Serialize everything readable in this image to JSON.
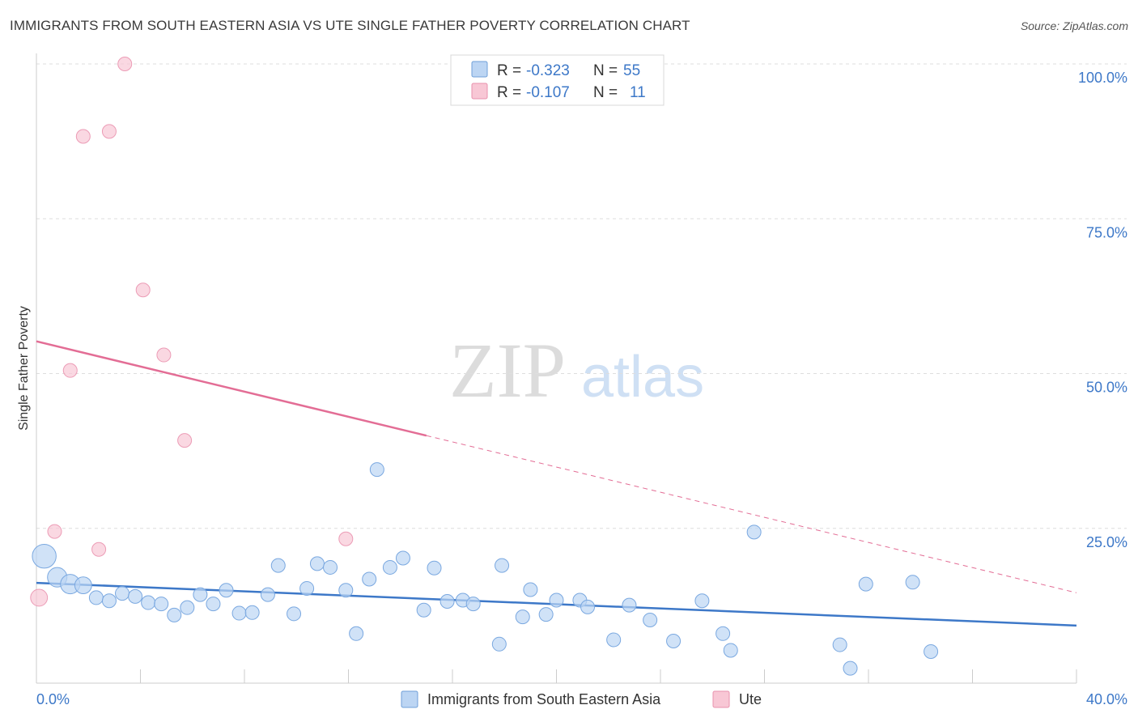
{
  "title": "IMMIGRANTS FROM SOUTH EASTERN ASIA VS UTE SINGLE FATHER POVERTY CORRELATION CHART",
  "source": "Source: ZipAtlas.com",
  "watermark": {
    "zip": "ZIP",
    "atlas": "atlas"
  },
  "chart_data": {
    "type": "scatter",
    "title": "IMMIGRANTS FROM SOUTH EASTERN ASIA VS UTE SINGLE FATHER POVERTY CORRELATION CHART",
    "xlabel": "",
    "ylabel": "Single Father Poverty",
    "xlim": [
      0,
      40
    ],
    "ylim": [
      0,
      100
    ],
    "x_tick_labels": [
      "0.0%",
      "40.0%"
    ],
    "y_ticks": [
      25,
      50,
      75,
      100
    ],
    "y_tick_labels": [
      "25.0%",
      "50.0%",
      "75.0%",
      "100.0%"
    ],
    "grid": true,
    "legend_position": "top-center",
    "colors": {
      "blue": "#3d78c8",
      "blue_fill": "#bcd5f3",
      "pink": "#e36d95",
      "pink_fill": "#f8c7d5"
    },
    "stats": [
      {
        "r_label": "R =",
        "r": "-0.323",
        "n_label": "N =",
        "n": "55"
      },
      {
        "r_label": "R =",
        "r": "-0.107",
        "n_label": "N =",
        "n": "11"
      }
    ],
    "series": [
      {
        "name": "Immigrants from South Eastern Asia",
        "color": "#3d78c8",
        "trend": {
          "x": [
            0,
            40
          ],
          "y": [
            16.2,
            9.3
          ],
          "dashed_from": null
        },
        "points": [
          {
            "x": 0.3,
            "y": 20.5,
            "s": 3
          },
          {
            "x": 0.8,
            "y": 17.1,
            "s": 2
          },
          {
            "x": 1.3,
            "y": 16.0,
            "s": 2
          },
          {
            "x": 1.8,
            "y": 15.8,
            "s": 1.5
          },
          {
            "x": 2.3,
            "y": 13.8,
            "s": 1
          },
          {
            "x": 2.8,
            "y": 13.3,
            "s": 1
          },
          {
            "x": 3.3,
            "y": 14.5,
            "s": 1
          },
          {
            "x": 3.8,
            "y": 14.0,
            "s": 1
          },
          {
            "x": 4.3,
            "y": 13.0,
            "s": 1
          },
          {
            "x": 4.8,
            "y": 12.8,
            "s": 1
          },
          {
            "x": 5.3,
            "y": 11.0,
            "s": 1
          },
          {
            "x": 5.8,
            "y": 12.2,
            "s": 1
          },
          {
            "x": 6.3,
            "y": 14.3,
            "s": 1
          },
          {
            "x": 6.8,
            "y": 12.8,
            "s": 1
          },
          {
            "x": 7.3,
            "y": 15.0,
            "s": 1
          },
          {
            "x": 7.8,
            "y": 11.3,
            "s": 1
          },
          {
            "x": 8.3,
            "y": 11.4,
            "s": 1
          },
          {
            "x": 8.9,
            "y": 14.3,
            "s": 1
          },
          {
            "x": 9.3,
            "y": 19.0,
            "s": 1
          },
          {
            "x": 9.9,
            "y": 11.2,
            "s": 1
          },
          {
            "x": 10.4,
            "y": 15.3,
            "s": 1
          },
          {
            "x": 10.8,
            "y": 19.3,
            "s": 1
          },
          {
            "x": 11.3,
            "y": 18.7,
            "s": 1
          },
          {
            "x": 11.9,
            "y": 15.0,
            "s": 1
          },
          {
            "x": 12.3,
            "y": 8.0,
            "s": 1
          },
          {
            "x": 12.8,
            "y": 16.8,
            "s": 1
          },
          {
            "x": 13.1,
            "y": 34.5,
            "s": 1
          },
          {
            "x": 13.6,
            "y": 18.7,
            "s": 1
          },
          {
            "x": 14.1,
            "y": 20.2,
            "s": 1
          },
          {
            "x": 14.9,
            "y": 11.8,
            "s": 1
          },
          {
            "x": 15.3,
            "y": 18.6,
            "s": 1
          },
          {
            "x": 15.8,
            "y": 13.2,
            "s": 1
          },
          {
            "x": 16.4,
            "y": 13.4,
            "s": 1
          },
          {
            "x": 16.8,
            "y": 12.8,
            "s": 1
          },
          {
            "x": 17.8,
            "y": 6.3,
            "s": 1
          },
          {
            "x": 17.9,
            "y": 19.0,
            "s": 1
          },
          {
            "x": 18.7,
            "y": 10.7,
            "s": 1
          },
          {
            "x": 19.0,
            "y": 15.1,
            "s": 1
          },
          {
            "x": 19.6,
            "y": 11.1,
            "s": 1
          },
          {
            "x": 20.0,
            "y": 13.4,
            "s": 1
          },
          {
            "x": 20.9,
            "y": 13.4,
            "s": 1
          },
          {
            "x": 21.2,
            "y": 12.3,
            "s": 1
          },
          {
            "x": 22.2,
            "y": 7.0,
            "s": 1
          },
          {
            "x": 22.8,
            "y": 12.6,
            "s": 1
          },
          {
            "x": 23.6,
            "y": 10.2,
            "s": 1
          },
          {
            "x": 24.5,
            "y": 6.8,
            "s": 1
          },
          {
            "x": 25.6,
            "y": 13.3,
            "s": 1
          },
          {
            "x": 26.4,
            "y": 8.0,
            "s": 1
          },
          {
            "x": 26.7,
            "y": 5.3,
            "s": 1
          },
          {
            "x": 27.6,
            "y": 24.4,
            "s": 1
          },
          {
            "x": 30.9,
            "y": 6.2,
            "s": 1
          },
          {
            "x": 31.3,
            "y": 2.4,
            "s": 1
          },
          {
            "x": 31.9,
            "y": 16.0,
            "s": 1
          },
          {
            "x": 33.7,
            "y": 16.3,
            "s": 1
          },
          {
            "x": 34.4,
            "y": 5.1,
            "s": 1
          }
        ]
      },
      {
        "name": "Ute",
        "color": "#e36d95",
        "trend": {
          "x": [
            0,
            40
          ],
          "y": [
            55.2,
            14.6
          ],
          "dashed_from": 15
        },
        "points": [
          {
            "x": 0.1,
            "y": 13.8,
            "s": 1.5
          },
          {
            "x": 0.7,
            "y": 24.5,
            "s": 1
          },
          {
            "x": 1.3,
            "y": 50.5,
            "s": 1
          },
          {
            "x": 1.8,
            "y": 88.3,
            "s": 1
          },
          {
            "x": 2.4,
            "y": 21.6,
            "s": 1
          },
          {
            "x": 2.8,
            "y": 89.1,
            "s": 1
          },
          {
            "x": 3.4,
            "y": 100.0,
            "s": 1
          },
          {
            "x": 4.1,
            "y": 63.5,
            "s": 1
          },
          {
            "x": 4.9,
            "y": 53.0,
            "s": 1
          },
          {
            "x": 5.7,
            "y": 39.2,
            "s": 1
          },
          {
            "x": 11.9,
            "y": 23.3,
            "s": 1
          }
        ]
      }
    ]
  }
}
